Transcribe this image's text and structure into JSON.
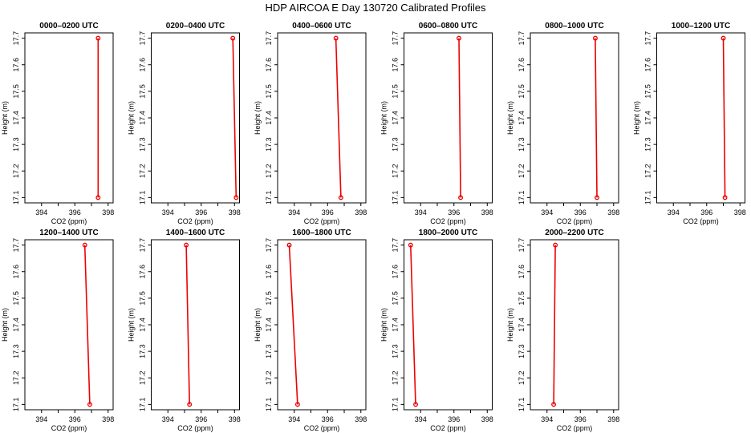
{
  "title": "HDP AIRCOA E  Day 130720  Calibrated Profiles",
  "colors": {
    "series": "#ee0000",
    "axis": "#000000",
    "background": "#ffffff"
  },
  "chart_data": [
    {
      "type": "line",
      "title": "0000–0200 UTC",
      "xlabel": "CO2 (ppm)",
      "ylabel": "Height (m)",
      "xlim": [
        393.0,
        398.3
      ],
      "ylim": [
        17.08,
        17.72
      ],
      "xticks": [
        "394",
        "396",
        "398"
      ],
      "yticks": [
        "17.1",
        "17.2",
        "17.3",
        "17.4",
        "17.5",
        "17.6",
        "17.7"
      ],
      "series": [
        {
          "x": [
            397.4,
            397.4
          ],
          "y": [
            17.1,
            17.7
          ]
        }
      ]
    },
    {
      "type": "line",
      "title": "0200–0400 UTC",
      "xlabel": "CO2 (ppm)",
      "ylabel": "Height (m)",
      "xlim": [
        393.0,
        398.3
      ],
      "ylim": [
        17.08,
        17.72
      ],
      "xticks": [
        "394",
        "396",
        "398"
      ],
      "yticks": [
        "17.1",
        "17.2",
        "17.3",
        "17.4",
        "17.5",
        "17.6",
        "17.7"
      ],
      "series": [
        {
          "x": [
            398.1,
            397.9
          ],
          "y": [
            17.1,
            17.7
          ]
        }
      ]
    },
    {
      "type": "line",
      "title": "0400–0600 UTC",
      "xlabel": "CO2 (ppm)",
      "ylabel": "Height (m)",
      "xlim": [
        393.0,
        398.3
      ],
      "ylim": [
        17.08,
        17.72
      ],
      "xticks": [
        "394",
        "396",
        "398"
      ],
      "yticks": [
        "17.1",
        "17.2",
        "17.3",
        "17.4",
        "17.5",
        "17.6",
        "17.7"
      ],
      "series": [
        {
          "x": [
            396.8,
            396.5
          ],
          "y": [
            17.1,
            17.7
          ]
        }
      ]
    },
    {
      "type": "line",
      "title": "0600–0800 UTC",
      "xlabel": "CO2 (ppm)",
      "ylabel": "Height (m)",
      "xlim": [
        393.0,
        398.3
      ],
      "ylim": [
        17.08,
        17.72
      ],
      "xticks": [
        "394",
        "396",
        "398"
      ],
      "yticks": [
        "17.1",
        "17.2",
        "17.3",
        "17.4",
        "17.5",
        "17.6",
        "17.7"
      ],
      "series": [
        {
          "x": [
            396.4,
            396.3
          ],
          "y": [
            17.1,
            17.7
          ]
        }
      ]
    },
    {
      "type": "line",
      "title": "0800–1000 UTC",
      "xlabel": "CO2 (ppm)",
      "ylabel": "Height (m)",
      "xlim": [
        393.0,
        398.3
      ],
      "ylim": [
        17.08,
        17.72
      ],
      "xticks": [
        "394",
        "396",
        "398"
      ],
      "yticks": [
        "17.1",
        "17.2",
        "17.3",
        "17.4",
        "17.5",
        "17.6",
        "17.7"
      ],
      "series": [
        {
          "x": [
            397.0,
            396.9
          ],
          "y": [
            17.1,
            17.7
          ]
        }
      ]
    },
    {
      "type": "line",
      "title": "1000–1200 UTC",
      "xlabel": "CO2 (ppm)",
      "ylabel": "Height (m)",
      "xlim": [
        393.0,
        398.3
      ],
      "ylim": [
        17.08,
        17.72
      ],
      "xticks": [
        "394",
        "396",
        "398"
      ],
      "yticks": [
        "17.1",
        "17.2",
        "17.3",
        "17.4",
        "17.5",
        "17.6",
        "17.7"
      ],
      "series": [
        {
          "x": [
            397.1,
            397.0
          ],
          "y": [
            17.1,
            17.7
          ]
        }
      ]
    },
    {
      "type": "line",
      "title": "1200–1400 UTC",
      "xlabel": "CO2 (ppm)",
      "ylabel": "Height (m)",
      "xlim": [
        393.0,
        398.3
      ],
      "ylim": [
        17.08,
        17.72
      ],
      "xticks": [
        "394",
        "396",
        "398"
      ],
      "yticks": [
        "17.1",
        "17.2",
        "17.3",
        "17.4",
        "17.5",
        "17.6",
        "17.7"
      ],
      "series": [
        {
          "x": [
            396.9,
            396.6
          ],
          "y": [
            17.1,
            17.7
          ]
        }
      ]
    },
    {
      "type": "line",
      "title": "1400–1600 UTC",
      "xlabel": "CO2 (ppm)",
      "ylabel": "Height (m)",
      "xlim": [
        393.0,
        398.3
      ],
      "ylim": [
        17.08,
        17.72
      ],
      "xticks": [
        "394",
        "396",
        "398"
      ],
      "yticks": [
        "17.1",
        "17.2",
        "17.3",
        "17.4",
        "17.5",
        "17.6",
        "17.7"
      ],
      "series": [
        {
          "x": [
            395.3,
            395.1
          ],
          "y": [
            17.1,
            17.7
          ]
        }
      ]
    },
    {
      "type": "line",
      "title": "1600–1800 UTC",
      "xlabel": "CO2 (ppm)",
      "ylabel": "Height (m)",
      "xlim": [
        393.0,
        398.3
      ],
      "ylim": [
        17.08,
        17.72
      ],
      "xticks": [
        "394",
        "396",
        "398"
      ],
      "yticks": [
        "17.1",
        "17.2",
        "17.3",
        "17.4",
        "17.5",
        "17.6",
        "17.7"
      ],
      "series": [
        {
          "x": [
            394.2,
            393.7
          ],
          "y": [
            17.1,
            17.7
          ]
        }
      ]
    },
    {
      "type": "line",
      "title": "1800–2000 UTC",
      "xlabel": "CO2 (ppm)",
      "ylabel": "Height (m)",
      "xlim": [
        393.0,
        398.3
      ],
      "ylim": [
        17.08,
        17.72
      ],
      "xticks": [
        "394",
        "396",
        "398"
      ],
      "yticks": [
        "17.1",
        "17.2",
        "17.3",
        "17.4",
        "17.5",
        "17.6",
        "17.7"
      ],
      "series": [
        {
          "x": [
            393.7,
            393.4
          ],
          "y": [
            17.1,
            17.7
          ]
        }
      ]
    },
    {
      "type": "line",
      "title": "2000–2200 UTC",
      "xlabel": "CO2 (ppm)",
      "ylabel": "Height (m)",
      "xlim": [
        393.0,
        398.3
      ],
      "ylim": [
        17.08,
        17.72
      ],
      "xticks": [
        "394",
        "396",
        "398"
      ],
      "yticks": [
        "17.1",
        "17.2",
        "17.3",
        "17.4",
        "17.5",
        "17.6",
        "17.7"
      ],
      "series": [
        {
          "x": [
            394.4,
            394.5
          ],
          "y": [
            17.1,
            17.7
          ]
        }
      ]
    }
  ]
}
